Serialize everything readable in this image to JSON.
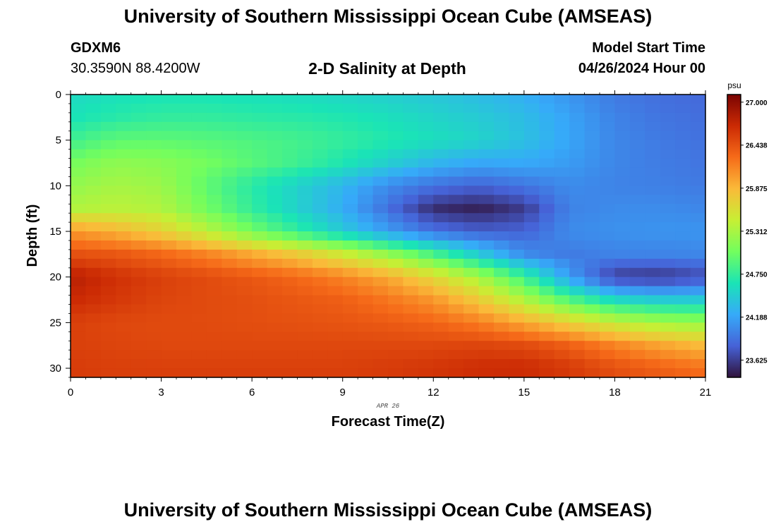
{
  "header": {
    "title": "University of Southern Mississippi Ocean Cube (AMSEAS)",
    "station_name": "GDXM6",
    "station_coords": "30.3590N  88.4200W",
    "plot_title": "2-D Salinity at Depth",
    "model_start_label": "Model Start Time",
    "model_start_date": "04/26/2024 Hour 00"
  },
  "footer": {
    "title": "University of Southern Mississippi Ocean Cube (AMSEAS)"
  },
  "chart_data": {
    "type": "heatmap",
    "title": "2-D Salinity at Depth",
    "xlabel": "Forecast Time(Z)",
    "ylabel": "Depth (ft)",
    "xlim": [
      0,
      21
    ],
    "ylim": [
      31,
      0
    ],
    "xticks": [
      0,
      3,
      6,
      9,
      12,
      15,
      18,
      21
    ],
    "yticks": [
      0,
      5,
      10,
      15,
      20,
      25,
      30
    ],
    "date_label": "APR 26",
    "colorbar": {
      "unit": "psu",
      "min": 23.4,
      "max": 27.1,
      "tick_values": [
        27.0,
        26.438,
        25.875,
        25.312,
        24.75,
        24.188,
        23.625
      ],
      "tick_labels": [
        "27.000",
        "26.438",
        "25.875",
        "25.312",
        "24.750",
        "24.188",
        "23.625"
      ],
      "colormap": [
        "#30123b",
        "#4662d7",
        "#36aaf9",
        "#1ae4b6",
        "#72fe5e",
        "#c7ef34",
        "#faba39",
        "#f66b19",
        "#cb2a04",
        "#7a0403"
      ]
    },
    "grid": {
      "times": [
        0,
        1.5,
        3,
        4.5,
        6,
        7.5,
        9,
        10.5,
        12,
        13.5,
        15,
        16.5,
        18,
        19.5,
        21
      ],
      "depths": [
        0,
        2.5,
        5,
        7.5,
        10,
        12.5,
        15,
        17.5,
        20,
        22.5,
        25,
        27.5,
        30,
        31
      ],
      "salinity": [
        [
          24.55,
          24.6,
          24.62,
          24.62,
          24.6,
          24.57,
          24.53,
          24.48,
          24.42,
          24.35,
          24.25,
          24.1,
          23.95,
          23.88,
          23.85
        ],
        [
          24.62,
          24.7,
          24.75,
          24.75,
          24.72,
          24.7,
          24.66,
          24.6,
          24.52,
          24.45,
          24.35,
          24.18,
          24.0,
          23.92,
          23.88
        ],
        [
          24.8,
          24.95,
          24.95,
          24.92,
          24.88,
          24.83,
          24.76,
          24.68,
          24.6,
          24.52,
          24.38,
          24.2,
          24.02,
          23.95,
          23.9
        ],
        [
          25.05,
          25.18,
          25.15,
          25.05,
          24.92,
          24.8,
          24.65,
          24.48,
          24.3,
          24.2,
          24.22,
          24.14,
          24.02,
          23.96,
          23.92
        ],
        [
          25.2,
          25.3,
          25.25,
          24.95,
          24.7,
          24.5,
          24.3,
          24.05,
          23.9,
          23.82,
          23.92,
          24.05,
          24.0,
          23.98,
          23.95
        ],
        [
          25.35,
          25.4,
          25.35,
          25.05,
          24.75,
          24.5,
          24.25,
          23.9,
          23.55,
          23.48,
          23.62,
          24.0,
          24.05,
          24.05,
          24.02
        ],
        [
          26.05,
          25.9,
          25.7,
          25.4,
          25.05,
          24.75,
          24.45,
          24.15,
          23.9,
          23.8,
          23.82,
          24.05,
          24.08,
          24.1,
          24.1
        ],
        [
          26.45,
          26.4,
          26.3,
          26.15,
          25.95,
          25.75,
          25.5,
          25.2,
          24.85,
          24.45,
          24.05,
          23.95,
          24.0,
          24.0,
          24.02
        ],
        [
          26.8,
          26.65,
          26.55,
          26.48,
          26.4,
          26.3,
          26.15,
          25.95,
          25.65,
          25.3,
          24.8,
          24.15,
          23.62,
          23.58,
          23.7
        ],
        [
          26.7,
          26.6,
          26.52,
          26.48,
          26.45,
          26.4,
          26.35,
          26.22,
          26.05,
          25.75,
          25.35,
          24.9,
          24.55,
          24.45,
          24.45
        ],
        [
          26.55,
          26.5,
          26.48,
          26.48,
          26.46,
          26.44,
          26.42,
          26.38,
          26.32,
          26.18,
          25.95,
          25.7,
          25.45,
          25.28,
          25.2
        ],
        [
          26.55,
          26.52,
          26.5,
          26.5,
          26.5,
          26.5,
          26.5,
          26.5,
          26.5,
          26.52,
          26.48,
          26.35,
          26.15,
          25.98,
          25.85
        ],
        [
          26.58,
          26.55,
          26.55,
          26.55,
          26.55,
          26.55,
          26.55,
          26.58,
          26.62,
          26.68,
          26.7,
          26.6,
          26.45,
          26.35,
          26.25
        ],
        [
          26.58,
          26.56,
          26.56,
          26.56,
          26.56,
          26.56,
          26.56,
          26.58,
          26.62,
          26.66,
          26.66,
          26.58,
          26.46,
          26.38,
          26.3
        ]
      ]
    }
  }
}
